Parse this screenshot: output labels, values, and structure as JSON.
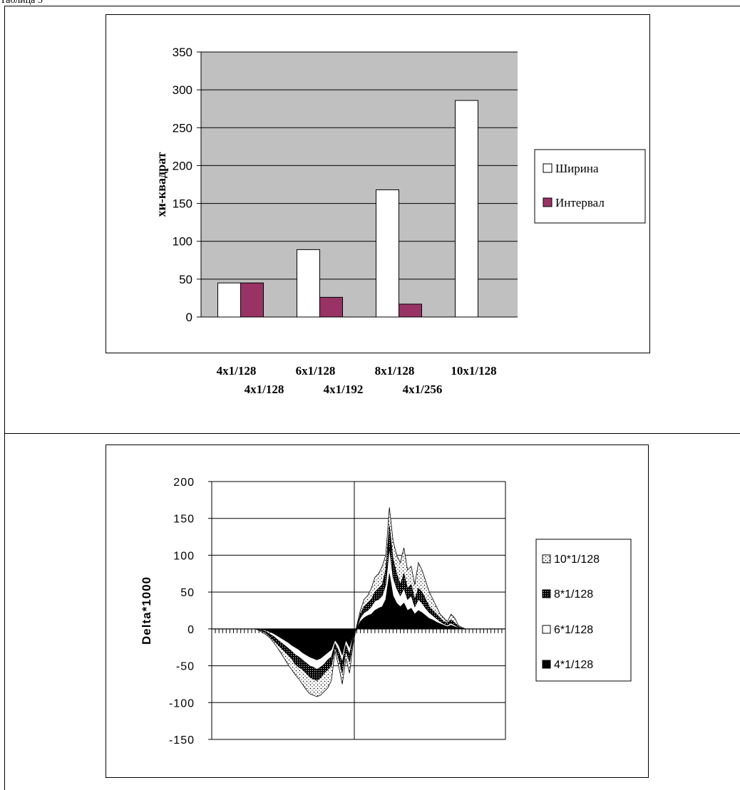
{
  "caption": "Таблица 5",
  "chart_data": [
    {
      "type": "bar",
      "title": "",
      "ylabel": "хи-квадрат",
      "xlabel": "",
      "ylim": [
        0,
        350
      ],
      "yticks": [
        0,
        50,
        100,
        150,
        200,
        250,
        300,
        350
      ],
      "grid": true,
      "plot_background": "#c0c0c0",
      "legend_position": "right",
      "categories": [
        "4x1/128",
        "6x1/128",
        "8x1/128",
        "10x1/128"
      ],
      "category_sublabels": [
        "4x1/128",
        "4x1/192",
        "4x1/256",
        ""
      ],
      "series": [
        {
          "name": "Ширина",
          "color": "#ffffff",
          "values": [
            45,
            89,
            168,
            286
          ]
        },
        {
          "name": "Интервал",
          "color": "#993366",
          "values": [
            45,
            26,
            17,
            0
          ]
        }
      ]
    },
    {
      "type": "area",
      "title": "",
      "ylabel": "Delta*1000",
      "xlabel": "",
      "ylim": [
        -150,
        200
      ],
      "yticks": [
        -150,
        -100,
        -50,
        0,
        50,
        100,
        150,
        200
      ],
      "grid": true,
      "legend_position": "right",
      "x": [
        1,
        2,
        3,
        4,
        5,
        6,
        7,
        8,
        9,
        10,
        11,
        12,
        13,
        14,
        15,
        16,
        17,
        18,
        19,
        20,
        21,
        22,
        23,
        24,
        25,
        26,
        27,
        28,
        29,
        30,
        31,
        32,
        33,
        34,
        35,
        36,
        37,
        38,
        39,
        40,
        41,
        42,
        43,
        44,
        45,
        46,
        47,
        48,
        49,
        50,
        51,
        52,
        53,
        54,
        55,
        56,
        57,
        58,
        59,
        60,
        61,
        62,
        63,
        64,
        65,
        66,
        67,
        68,
        69,
        70,
        71,
        72,
        73,
        74,
        75,
        76,
        77,
        78,
        79,
        80,
        81,
        82
      ],
      "series": [
        {
          "name": "10*1/128",
          "pattern": "light-dots",
          "values": [
            0,
            0,
            0,
            0,
            0,
            0,
            0,
            0,
            0,
            0,
            0,
            0,
            0,
            -2,
            -5,
            -8,
            -12,
            -18,
            -25,
            -32,
            -40,
            -48,
            -55,
            -62,
            -68,
            -75,
            -82,
            -88,
            -90,
            -92,
            -90,
            -85,
            -80,
            -70,
            -30,
            -50,
            -75,
            -40,
            -60,
            -20,
            5,
            25,
            40,
            45,
            55,
            70,
            75,
            85,
            100,
            165,
            120,
            100,
            90,
            110,
            80,
            85,
            60,
            90,
            80,
            65,
            50,
            40,
            30,
            20,
            15,
            10,
            20,
            15,
            5,
            2,
            0,
            0,
            0,
            0,
            0,
            0,
            0,
            0,
            0,
            0,
            0,
            0
          ]
        },
        {
          "name": "8*1/128",
          "pattern": "dark-dots",
          "values": [
            0,
            0,
            0,
            0,
            0,
            0,
            0,
            0,
            0,
            0,
            0,
            0,
            0,
            -1,
            -3,
            -6,
            -10,
            -15,
            -20,
            -25,
            -30,
            -35,
            -40,
            -48,
            -52,
            -55,
            -60,
            -65,
            -68,
            -70,
            -66,
            -60,
            -55,
            -50,
            -25,
            -40,
            -60,
            -30,
            -45,
            -15,
            3,
            20,
            30,
            35,
            40,
            50,
            55,
            60,
            80,
            140,
            95,
            75,
            60,
            75,
            55,
            60,
            40,
            55,
            50,
            40,
            30,
            25,
            20,
            15,
            10,
            8,
            12,
            8,
            3,
            1,
            0,
            0,
            0,
            0,
            0,
            0,
            0,
            0,
            0,
            0,
            0,
            0
          ]
        },
        {
          "name": "6*1/128",
          "pattern": "white",
          "values": [
            0,
            0,
            0,
            0,
            0,
            0,
            0,
            0,
            0,
            0,
            0,
            0,
            0,
            -1,
            -2,
            -4,
            -7,
            -10,
            -14,
            -18,
            -22,
            -26,
            -30,
            -35,
            -38,
            -42,
            -46,
            -50,
            -52,
            -55,
            -52,
            -48,
            -42,
            -38,
            -20,
            -30,
            -45,
            -22,
            -35,
            -10,
            2,
            15,
            22,
            25,
            30,
            38,
            40,
            45,
            60,
            110,
            70,
            55,
            45,
            55,
            40,
            45,
            30,
            40,
            35,
            28,
            22,
            18,
            14,
            10,
            7,
            5,
            8,
            5,
            2,
            0,
            0,
            0,
            0,
            0,
            0,
            0,
            0,
            0,
            0,
            0,
            0,
            0
          ]
        },
        {
          "name": "4*1/128",
          "pattern": "black",
          "values": [
            0,
            0,
            0,
            0,
            0,
            0,
            0,
            0,
            0,
            0,
            0,
            0,
            0,
            0,
            -1,
            -2,
            -4,
            -6,
            -9,
            -12,
            -15,
            -18,
            -22,
            -25,
            -28,
            -32,
            -35,
            -38,
            -40,
            -42,
            -40,
            -36,
            -32,
            -28,
            -15,
            -22,
            -35,
            -15,
            -25,
            -8,
            1,
            10,
            15,
            18,
            20,
            25,
            28,
            30,
            40,
            75,
            45,
            35,
            30,
            35,
            25,
            28,
            20,
            25,
            22,
            18,
            14,
            12,
            9,
            7,
            5,
            3,
            5,
            3,
            1,
            0,
            0,
            0,
            0,
            0,
            0,
            0,
            0,
            0,
            0,
            0,
            0,
            0
          ]
        }
      ]
    }
  ]
}
